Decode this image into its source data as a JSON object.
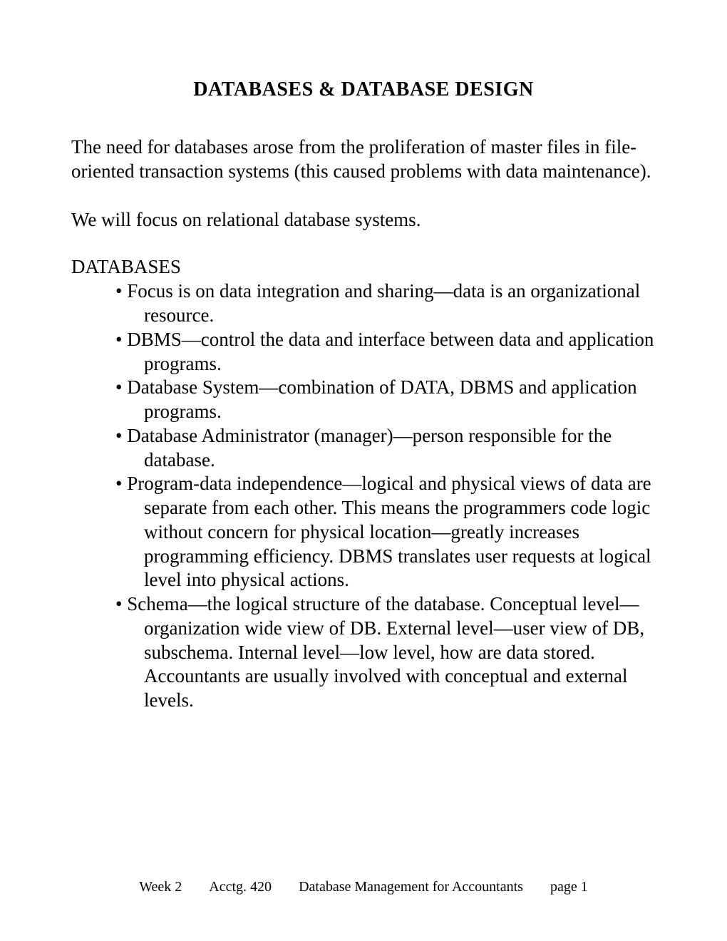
{
  "title": "DATABASES & DATABASE DESIGN",
  "paragraphs": {
    "p1": "The need for databases arose from the proliferation of master files in file-oriented transaction systems (this caused problems with data maintenance).",
    "p2": "We will focus on relational database systems."
  },
  "section": {
    "heading": "DATABASES",
    "bullets": {
      "b1": "Focus is on data integration and sharing—data is an organizational resource.",
      "b2": "DBMS—control the data and interface between data and application programs.",
      "b3": "Database System—combination of DATA, DBMS and application programs.",
      "b4": "Database Administrator (manager)—person responsible for the database.",
      "b5": "Program-data independence—logical and physical views of data are separate from each other.  This means the programmers code logic without concern for physical location—greatly increases programming efficiency.  DBMS translates user requests at logical level into physical actions.",
      "b6": "Schema—the logical structure of the database.  Conceptual level—organization wide view of DB.  External level—user view of DB, subschema.  Internal level—low level, how are data stored.  Accountants are usually involved with conceptual and external levels."
    }
  },
  "footer": {
    "week": "Week 2",
    "course": "Acctg. 420",
    "courseTitle": "Database Management for Accountants",
    "page": "page 1"
  },
  "style": {
    "bodyFontSize": 27,
    "titleFontSize": 28,
    "footerFontSize": 20,
    "textColor": "#000000",
    "backgroundColor": "#ffffff",
    "fontFamily": "Times New Roman"
  }
}
